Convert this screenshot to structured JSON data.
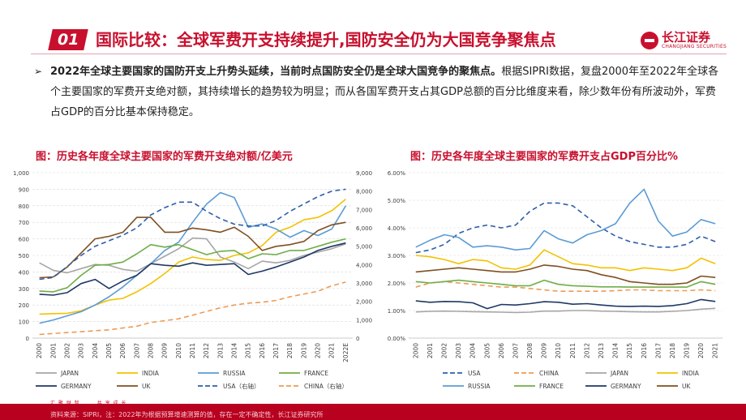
{
  "header": {
    "badge": "01",
    "title": "国际比较：全球军费开支持续提升,国防安全仍为大国竞争聚焦点",
    "logo_cn": "长江证券",
    "logo_en": "CHANGJIANG SECURITIES"
  },
  "bullet": {
    "arrow": "➢",
    "bold": "2022年全球主要国家的国防开支上升势头延续，当前时点国防安全仍是全球大国竞争的聚焦点。",
    "rest": "根据SIPRI数据，复盘2000年至2022年全球各个主要国家的军费开支绝对额，其持续增长的趋势较为明显；而从各国军费开支占其GDP总额的百分比维度来看，除少数年份有所波动外，军费占GDP的百分比基本保持稳定。"
  },
  "colors": {
    "JAPAN": "#a6a6a6",
    "INDIA": "#f2c200",
    "RUSSIA": "#5b9bd5",
    "FRANCE": "#70ad47",
    "GERMANY": "#1f3864",
    "UK": "#7f4f21",
    "USA": "#2e5ea8",
    "CHINA": "#ed9b54"
  },
  "chart_data": [
    {
      "type": "line",
      "title": "图：历史各年度全球主要国家的军费开支绝对额/亿美元",
      "x": [
        "2000",
        "2001",
        "2002",
        "2003",
        "2004",
        "2005",
        "2006",
        "2007",
        "2008",
        "2009",
        "2010",
        "2011",
        "2012",
        "2013",
        "2014",
        "2015",
        "2016",
        "2017",
        "2018",
        "2019",
        "2020",
        "2021",
        "2022E"
      ],
      "ylim": [
        0,
        1000
      ],
      "yticks": [
        "0",
        "100",
        "200",
        "300",
        "400",
        "500",
        "600",
        "700",
        "800",
        "900",
        "1,000"
      ],
      "y2lim": [
        0,
        9000
      ],
      "y2ticks": [
        "0",
        "1,000",
        "2,000",
        "3,000",
        "4,000",
        "5,000",
        "6,000",
        "7,000",
        "8,000",
        "9,000"
      ],
      "legend_position": "bottom",
      "legend": [
        {
          "name": "JAPAN",
          "dash": false
        },
        {
          "name": "INDIA",
          "dash": false
        },
        {
          "name": "RUSSIA",
          "dash": false
        },
        {
          "name": "FRANCE",
          "dash": false
        },
        {
          "name": "GERMANY",
          "dash": false
        },
        {
          "name": "UK",
          "dash": false
        },
        {
          "name": "USA（右轴）",
          "key": "USA",
          "dash": true
        },
        {
          "name": "CHINA（右轴）",
          "key": "CHINA",
          "dash": true
        }
      ],
      "series": [
        {
          "key": "JAPAN",
          "axis": "left",
          "dash": false,
          "values": [
            455,
            410,
            395,
            420,
            445,
            440,
            415,
            405,
            450,
            495,
            540,
            605,
            600,
            490,
            460,
            420,
            465,
            455,
            470,
            500,
            520,
            540,
            570
          ]
        },
        {
          "key": "INDIA",
          "axis": "left",
          "dash": false,
          "values": [
            145,
            148,
            150,
            165,
            200,
            230,
            240,
            280,
            330,
            390,
            460,
            490,
            475,
            470,
            500,
            515,
            560,
            640,
            670,
            715,
            730,
            770,
            840
          ]
        },
        {
          "key": "RUSSIA",
          "axis": "left",
          "dash": false,
          "values": [
            90,
            110,
            135,
            160,
            200,
            250,
            310,
            380,
            450,
            530,
            580,
            700,
            810,
            880,
            850,
            670,
            690,
            660,
            610,
            650,
            620,
            660,
            800
          ]
        },
        {
          "key": "FRANCE",
          "axis": "left",
          "dash": false,
          "values": [
            285,
            280,
            305,
            380,
            440,
            445,
            460,
            510,
            565,
            550,
            565,
            535,
            505,
            525,
            530,
            480,
            510,
            505,
            530,
            530,
            555,
            580,
            600
          ]
        },
        {
          "key": "GERMANY",
          "axis": "left",
          "dash": false,
          "values": [
            265,
            260,
            275,
            330,
            355,
            300,
            345,
            380,
            450,
            440,
            435,
            455,
            440,
            445,
            450,
            385,
            405,
            430,
            460,
            490,
            530,
            555,
            575
          ]
        },
        {
          "key": "UK",
          "axis": "left",
          "dash": false,
          "values": [
            365,
            370,
            430,
            515,
            600,
            615,
            640,
            730,
            730,
            640,
            640,
            665,
            655,
            640,
            670,
            615,
            530,
            555,
            565,
            585,
            650,
            685,
            700
          ]
        },
        {
          "key": "USA",
          "axis": "right",
          "dash": true,
          "values": [
            3200,
            3300,
            3900,
            4500,
            5000,
            5300,
            5600,
            6000,
            6700,
            7100,
            7400,
            7400,
            6900,
            6500,
            6200,
            6100,
            6100,
            6400,
            6900,
            7300,
            7700,
            8000,
            8100
          ]
        },
        {
          "key": "CHINA",
          "axis": "right",
          "dash": true,
          "values": [
            200,
            250,
            300,
            350,
            400,
            450,
            550,
            650,
            850,
            950,
            1050,
            1250,
            1450,
            1650,
            1800,
            1900,
            1950,
            2050,
            2250,
            2400,
            2550,
            2850,
            3050
          ]
        }
      ]
    },
    {
      "type": "line",
      "title": "图：历史各年度全球主要国家的军费开支占GDP百分比%",
      "x": [
        "2000",
        "2001",
        "2002",
        "2003",
        "2004",
        "2005",
        "2006",
        "2007",
        "2008",
        "2009",
        "2010",
        "2011",
        "2012",
        "2013",
        "2014",
        "2015",
        "2016",
        "2017",
        "2018",
        "2019",
        "2020",
        "2021"
      ],
      "ylim": [
        0,
        6
      ],
      "yticks": [
        "0.00%",
        "1.00%",
        "2.00%",
        "3.00%",
        "4.00%",
        "5.00%",
        "6.00%"
      ],
      "legend_position": "bottom",
      "legend": [
        {
          "name": "USA",
          "dash": true
        },
        {
          "name": "CHINA",
          "dash": true
        },
        {
          "name": "JAPAN",
          "dash": false
        },
        {
          "name": "INDIA",
          "dash": false
        },
        {
          "name": "RUSSIA",
          "dash": false
        },
        {
          "name": "FRANCE",
          "dash": false
        },
        {
          "name": "GERMANY",
          "dash": false
        },
        {
          "name": "UK",
          "dash": false
        }
      ],
      "series": [
        {
          "key": "USA",
          "dash": true,
          "values": [
            3.1,
            3.2,
            3.4,
            3.8,
            4.0,
            4.1,
            4.0,
            4.1,
            4.6,
            4.9,
            4.9,
            4.8,
            4.4,
            4.0,
            3.7,
            3.5,
            3.4,
            3.3,
            3.3,
            3.4,
            3.7,
            3.5
          ]
        },
        {
          "key": "CHINA",
          "dash": true,
          "values": [
            1.85,
            2.0,
            2.05,
            2.0,
            1.95,
            1.9,
            1.85,
            1.85,
            1.8,
            1.75,
            1.7,
            1.7,
            1.7,
            1.7,
            1.72,
            1.75,
            1.75,
            1.72,
            1.72,
            1.72,
            1.75,
            1.72
          ]
        },
        {
          "key": "JAPAN",
          "dash": false,
          "values": [
            0.95,
            0.97,
            0.98,
            0.97,
            0.96,
            0.95,
            0.94,
            0.93,
            0.94,
            0.98,
            0.98,
            1.0,
            1.0,
            0.98,
            0.97,
            0.96,
            0.95,
            0.95,
            0.97,
            1.0,
            1.05,
            1.08
          ]
        },
        {
          "key": "INDIA",
          "dash": false,
          "values": [
            3.0,
            2.95,
            2.85,
            2.7,
            2.85,
            2.8,
            2.55,
            2.5,
            2.65,
            3.2,
            2.95,
            2.7,
            2.65,
            2.55,
            2.55,
            2.45,
            2.55,
            2.5,
            2.45,
            2.55,
            2.9,
            2.7
          ]
        },
        {
          "key": "RUSSIA",
          "dash": false,
          "values": [
            3.3,
            3.55,
            3.75,
            3.65,
            3.3,
            3.35,
            3.3,
            3.2,
            3.25,
            3.9,
            3.6,
            3.45,
            3.75,
            3.9,
            4.15,
            4.9,
            5.4,
            4.25,
            3.7,
            3.85,
            4.3,
            4.15
          ]
        },
        {
          "key": "FRANCE",
          "dash": false,
          "values": [
            2.05,
            2.0,
            2.05,
            2.1,
            2.05,
            2.0,
            1.95,
            1.9,
            1.9,
            2.1,
            1.95,
            1.9,
            1.88,
            1.86,
            1.86,
            1.85,
            1.85,
            1.85,
            1.85,
            1.85,
            2.05,
            1.95
          ]
        },
        {
          "key": "GERMANY",
          "dash": false,
          "values": [
            1.35,
            1.3,
            1.33,
            1.32,
            1.28,
            1.07,
            1.22,
            1.2,
            1.25,
            1.32,
            1.3,
            1.23,
            1.25,
            1.2,
            1.16,
            1.15,
            1.16,
            1.15,
            1.18,
            1.25,
            1.4,
            1.33
          ]
        },
        {
          "key": "UK",
          "dash": false,
          "values": [
            2.4,
            2.45,
            2.5,
            2.55,
            2.5,
            2.45,
            2.4,
            2.4,
            2.5,
            2.65,
            2.6,
            2.5,
            2.45,
            2.3,
            2.2,
            2.05,
            2.0,
            1.95,
            1.95,
            2.0,
            2.25,
            2.2
          ]
        }
      ]
    }
  ],
  "footer": {
    "slogan": "汇 聚 财 智　　　共 享 成 长",
    "source": "资料来源：SIPRI，注：2022年为根据预算增速测算的值，存在一定不确定性，长江证券研究所"
  }
}
